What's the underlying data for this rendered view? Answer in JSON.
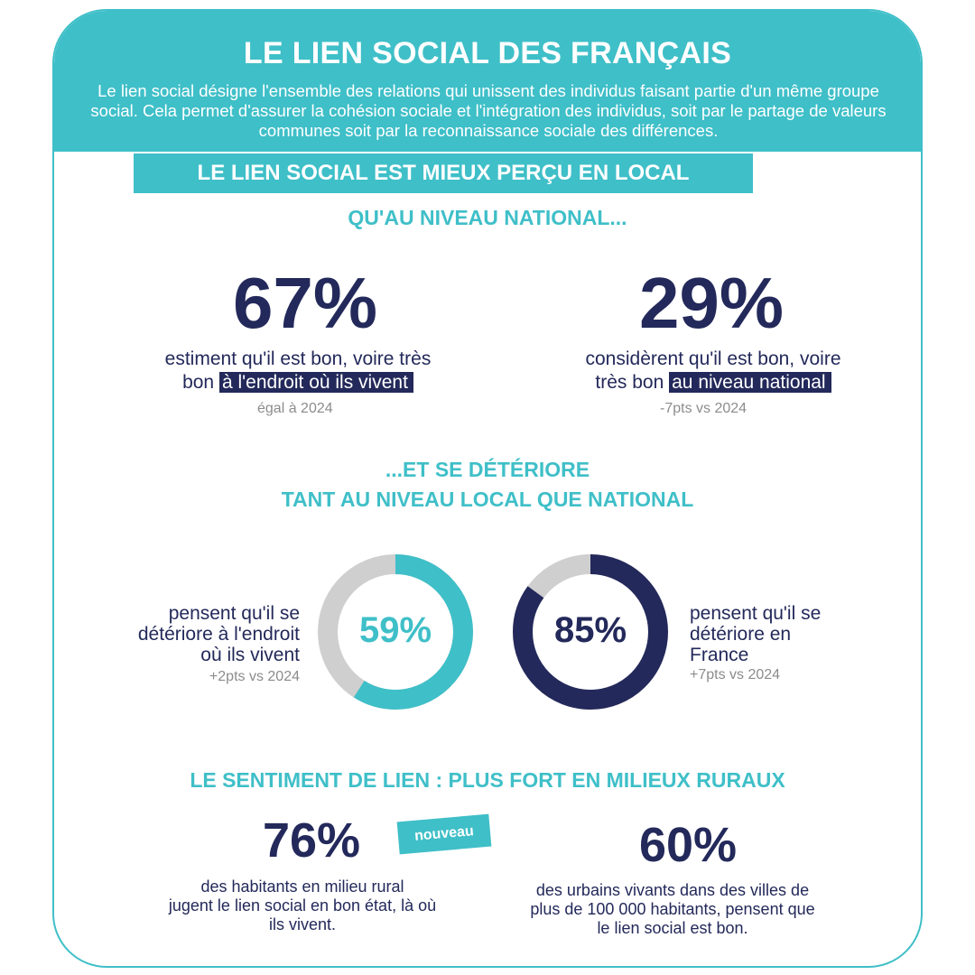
{
  "header": {
    "title": "LE LIEN SOCIAL DES FRANÇAIS",
    "intro": "Le lien social désigne l'ensemble des relations qui unissent des individus faisant partie d'un même groupe social. Cela permet d'assurer la cohésion sociale et l'intégration des individus, soit par le partage de valeurs communes soit par la reconnaissance sociale des différences."
  },
  "section1": {
    "box_title": "LE LIEN SOCIAL EST MIEUX PERÇU EN LOCAL",
    "subtitle": "QU'AU NIVEAU NATIONAL...",
    "stats": [
      {
        "value": "67%",
        "desc_line1": "estiment qu'il est bon, voire très",
        "desc_line2_plain": "bon",
        "desc_line2_highlight": "à l'endroit où ils vivent",
        "delta": "égal à 2024"
      },
      {
        "value": "29%",
        "desc_line1": "considèrent qu'il est bon, voire",
        "desc_line2_plain": "très bon",
        "desc_line2_highlight": "au niveau national",
        "delta": "-7pts vs 2024"
      }
    ]
  },
  "section2": {
    "title_line1": "...ET SE DÉTÉRIORE",
    "title_line2": "TANT AU NIVEAU LOCAL QUE NATIONAL",
    "donuts": [
      {
        "value_label": "59%",
        "fraction": 0.59,
        "color": "#3fbfc8",
        "desc": [
          "pensent qu'il se",
          "détériore à l'endroit",
          "où ils vivent"
        ],
        "delta": "+2pts vs 2024"
      },
      {
        "value_label": "85%",
        "fraction": 0.85,
        "color": "#23295a",
        "desc": [
          "pensent qu'il se",
          "détériore en",
          "France"
        ],
        "delta": "+7pts vs 2024"
      }
    ]
  },
  "section3": {
    "title": "LE SENTIMENT DE LIEN : PLUS FORT EN MILIEUX RURAUX",
    "badge": "nouveau",
    "stats": [
      {
        "value": "76%",
        "desc": [
          "des habitants en milieu rural",
          "jugent le lien social en bon état, là où",
          "ils vivent."
        ]
      },
      {
        "value": "60%",
        "desc": [
          "des urbains vivants dans des villes de",
          "plus de 100 000 habitants, pensent que",
          "le lien social est bon."
        ]
      }
    ]
  },
  "colors": {
    "teal": "#3fbfc8",
    "navy": "#23295a",
    "grey": "#cfcfcf",
    "delta_grey": "#8c8c8c"
  }
}
